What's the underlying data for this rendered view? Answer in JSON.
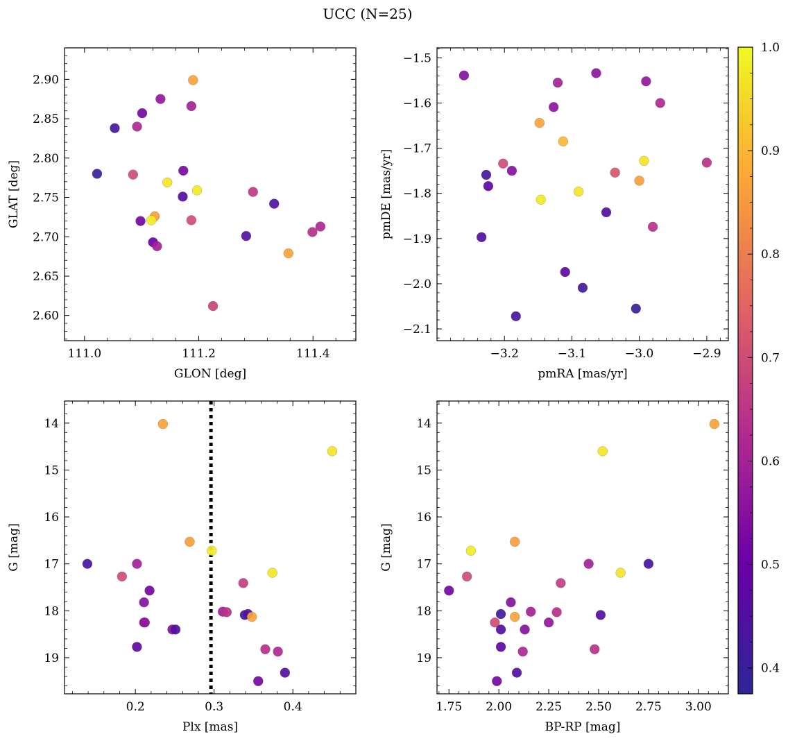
{
  "figure": {
    "title": "UCC (N=25)"
  },
  "colorbar": {
    "min": 0.375,
    "max": 1.0,
    "ticks": [
      0.4,
      0.5,
      0.6,
      0.7,
      0.8,
      0.9,
      1.0
    ],
    "tick_labels": [
      "0.4",
      "0.5",
      "0.6",
      "0.7",
      "0.8",
      "0.9",
      "1.0"
    ],
    "colormap": "plasma",
    "colormap_stops": [
      "#2d2697",
      "#6a00a8",
      "#b12a90",
      "#e16462",
      "#fca636",
      "#f0f921"
    ]
  },
  "chart_data": [
    {
      "type": "scatter",
      "xlabel": "GLON [deg]",
      "ylabel": "GLAT [deg]",
      "xlim": [
        110.965,
        111.475
      ],
      "ylim": [
        2.568,
        2.94
      ],
      "y_inverted": false,
      "xticks": [
        111.0,
        111.2,
        111.4
      ],
      "xtick_labels": [
        "111.0",
        "111.2",
        "111.4"
      ],
      "yticks": [
        2.6,
        2.65,
        2.7,
        2.75,
        2.8,
        2.85,
        2.9
      ],
      "ytick_labels": [
        "2.60",
        "2.65",
        "2.70",
        "2.75",
        "2.80",
        "2.85",
        "2.90"
      ],
      "points": [
        {
          "x": 111.19,
          "y": 2.899,
          "c": 0.87
        },
        {
          "x": 111.133,
          "y": 2.875,
          "c": 0.57
        },
        {
          "x": 111.187,
          "y": 2.866,
          "c": 0.6
        },
        {
          "x": 111.101,
          "y": 2.857,
          "c": 0.52
        },
        {
          "x": 111.053,
          "y": 2.838,
          "c": 0.42
        },
        {
          "x": 111.092,
          "y": 2.84,
          "c": 0.62
        },
        {
          "x": 111.173,
          "y": 2.784,
          "c": 0.53
        },
        {
          "x": 111.022,
          "y": 2.78,
          "c": 0.4
        },
        {
          "x": 111.085,
          "y": 2.779,
          "c": 0.7
        },
        {
          "x": 111.145,
          "y": 2.769,
          "c": 0.97
        },
        {
          "x": 111.197,
          "y": 2.759,
          "c": 0.98
        },
        {
          "x": 111.295,
          "y": 2.757,
          "c": 0.66
        },
        {
          "x": 111.172,
          "y": 2.751,
          "c": 0.45
        },
        {
          "x": 111.332,
          "y": 2.742,
          "c": 0.45
        },
        {
          "x": 111.123,
          "y": 2.726,
          "c": 0.86
        },
        {
          "x": 111.187,
          "y": 2.721,
          "c": 0.7
        },
        {
          "x": 111.098,
          "y": 2.72,
          "c": 0.52
        },
        {
          "x": 111.117,
          "y": 2.721,
          "c": 0.98
        },
        {
          "x": 111.413,
          "y": 2.713,
          "c": 0.62
        },
        {
          "x": 111.399,
          "y": 2.706,
          "c": 0.64
        },
        {
          "x": 111.283,
          "y": 2.701,
          "c": 0.45
        },
        {
          "x": 111.12,
          "y": 2.693,
          "c": 0.5
        },
        {
          "x": 111.127,
          "y": 2.688,
          "c": 0.6
        },
        {
          "x": 111.357,
          "y": 2.679,
          "c": 0.87
        },
        {
          "x": 111.225,
          "y": 2.612,
          "c": 0.68
        }
      ],
      "vline": null
    },
    {
      "type": "scatter",
      "xlabel": "pmRA [mas/yr]",
      "ylabel": "pmDE [mas/yr]",
      "xlim": [
        -3.3,
        -2.868
      ],
      "ylim": [
        -2.126,
        -1.478
      ],
      "y_inverted": false,
      "xticks": [
        -3.2,
        -3.1,
        -3.0,
        -2.9
      ],
      "xtick_labels": [
        "−3.2",
        "−3.1",
        "−3.0",
        "−2.9"
      ],
      "yticks": [
        -2.1,
        -2.0,
        -1.9,
        -1.8,
        -1.7,
        -1.6,
        -1.5
      ],
      "ytick_labels": [
        "−2.1",
        "−2.0",
        "−1.9",
        "−1.8",
        "−1.7",
        "−1.6",
        "−1.5"
      ],
      "points": [
        {
          "x": -3.26,
          "y": -1.539,
          "c": 0.55
        },
        {
          "x": -3.064,
          "y": -1.534,
          "c": 0.56
        },
        {
          "x": -3.121,
          "y": -1.555,
          "c": 0.6
        },
        {
          "x": -2.99,
          "y": -1.552,
          "c": 0.57
        },
        {
          "x": -2.969,
          "y": -1.6,
          "c": 0.62
        },
        {
          "x": -3.127,
          "y": -1.609,
          "c": 0.56
        },
        {
          "x": -3.148,
          "y": -1.644,
          "c": 0.87
        },
        {
          "x": -3.113,
          "y": -1.685,
          "c": 0.9
        },
        {
          "x": -2.993,
          "y": -1.728,
          "c": 0.97
        },
        {
          "x": -2.9,
          "y": -1.732,
          "c": 0.64
        },
        {
          "x": -3.202,
          "y": -1.734,
          "c": 0.7
        },
        {
          "x": -3.189,
          "y": -1.75,
          "c": 0.55
        },
        {
          "x": -3.036,
          "y": -1.754,
          "c": 0.72
        },
        {
          "x": -3.227,
          "y": -1.759,
          "c": 0.42
        },
        {
          "x": -3.0,
          "y": -1.772,
          "c": 0.86
        },
        {
          "x": -3.224,
          "y": -1.784,
          "c": 0.48
        },
        {
          "x": -3.09,
          "y": -1.796,
          "c": 0.97
        },
        {
          "x": -3.146,
          "y": -1.814,
          "c": 0.98
        },
        {
          "x": -3.049,
          "y": -1.842,
          "c": 0.45
        },
        {
          "x": -2.98,
          "y": -1.874,
          "c": 0.64
        },
        {
          "x": -3.234,
          "y": -1.897,
          "c": 0.45
        },
        {
          "x": -3.11,
          "y": -1.974,
          "c": 0.48
        },
        {
          "x": -3.084,
          "y": -2.009,
          "c": 0.42
        },
        {
          "x": -3.005,
          "y": -2.055,
          "c": 0.4
        },
        {
          "x": -3.183,
          "y": -2.072,
          "c": 0.43
        }
      ],
      "vline": null
    },
    {
      "type": "scatter",
      "xlabel": "Plx [mas]",
      "ylabel": "G [mag]",
      "xlim": [
        0.11,
        0.48
      ],
      "ylim": [
        13.53,
        19.77
      ],
      "y_inverted": true,
      "xticks": [
        0.2,
        0.3,
        0.4
      ],
      "xtick_labels": [
        "0.2",
        "0.3",
        "0.4"
      ],
      "yticks": [
        14,
        15,
        16,
        17,
        18,
        19
      ],
      "ytick_labels": [
        "14",
        "15",
        "16",
        "17",
        "18",
        "19"
      ],
      "points": [
        {
          "x": 0.235,
          "y": 14.02,
          "c": 0.87
        },
        {
          "x": 0.45,
          "y": 14.6,
          "c": 0.97
        },
        {
          "x": 0.269,
          "y": 16.53,
          "c": 0.86
        },
        {
          "x": 0.297,
          "y": 16.72,
          "c": 0.98
        },
        {
          "x": 0.139,
          "y": 17.0,
          "c": 0.43
        },
        {
          "x": 0.202,
          "y": 17.0,
          "c": 0.6
        },
        {
          "x": 0.374,
          "y": 17.19,
          "c": 0.97
        },
        {
          "x": 0.183,
          "y": 17.27,
          "c": 0.7
        },
        {
          "x": 0.337,
          "y": 17.41,
          "c": 0.67
        },
        {
          "x": 0.218,
          "y": 17.57,
          "c": 0.52
        },
        {
          "x": 0.211,
          "y": 17.82,
          "c": 0.55
        },
        {
          "x": 0.311,
          "y": 18.02,
          "c": 0.6
        },
        {
          "x": 0.316,
          "y": 18.03,
          "c": 0.64
        },
        {
          "x": 0.339,
          "y": 18.09,
          "c": 0.42
        },
        {
          "x": 0.343,
          "y": 18.07,
          "c": 0.45
        },
        {
          "x": 0.348,
          "y": 18.13,
          "c": 0.87
        },
        {
          "x": 0.211,
          "y": 18.25,
          "c": 0.6
        },
        {
          "x": 0.212,
          "y": 18.25,
          "c": 0.57
        },
        {
          "x": 0.247,
          "y": 18.4,
          "c": 0.55
        },
        {
          "x": 0.251,
          "y": 18.4,
          "c": 0.45
        },
        {
          "x": 0.202,
          "y": 18.77,
          "c": 0.48
        },
        {
          "x": 0.365,
          "y": 18.82,
          "c": 0.64
        },
        {
          "x": 0.381,
          "y": 18.87,
          "c": 0.62
        },
        {
          "x": 0.39,
          "y": 19.32,
          "c": 0.45
        },
        {
          "x": 0.356,
          "y": 19.5,
          "c": 0.52
        }
      ],
      "vline": {
        "x": 0.296,
        "style": "dotted"
      }
    },
    {
      "type": "scatter",
      "xlabel": "BP-RP [mag]",
      "ylabel": "G [mag]",
      "xlim": [
        1.69,
        3.15
      ],
      "ylim": [
        13.53,
        19.77
      ],
      "y_inverted": true,
      "xticks": [
        1.75,
        2.0,
        2.25,
        2.5,
        2.75,
        3.0
      ],
      "xtick_labels": [
        "1.75",
        "2.00",
        "2.25",
        "2.50",
        "2.75",
        "3.00"
      ],
      "yticks": [
        14,
        15,
        16,
        17,
        18,
        19
      ],
      "ytick_labels": [
        "14",
        "15",
        "16",
        "17",
        "18",
        "19"
      ],
      "points": [
        {
          "x": 3.08,
          "y": 14.02,
          "c": 0.87
        },
        {
          "x": 2.52,
          "y": 14.6,
          "c": 0.97
        },
        {
          "x": 2.08,
          "y": 16.53,
          "c": 0.86
        },
        {
          "x": 1.86,
          "y": 16.72,
          "c": 0.98
        },
        {
          "x": 2.45,
          "y": 17.0,
          "c": 0.6
        },
        {
          "x": 2.75,
          "y": 17.0,
          "c": 0.43
        },
        {
          "x": 2.61,
          "y": 17.19,
          "c": 0.97
        },
        {
          "x": 1.84,
          "y": 17.27,
          "c": 0.7
        },
        {
          "x": 2.31,
          "y": 17.41,
          "c": 0.67
        },
        {
          "x": 1.75,
          "y": 17.57,
          "c": 0.52
        },
        {
          "x": 2.06,
          "y": 17.82,
          "c": 0.55
        },
        {
          "x": 2.16,
          "y": 18.02,
          "c": 0.6
        },
        {
          "x": 2.29,
          "y": 18.03,
          "c": 0.64
        },
        {
          "x": 2.01,
          "y": 18.07,
          "c": 0.42
        },
        {
          "x": 2.51,
          "y": 18.09,
          "c": 0.45
        },
        {
          "x": 2.08,
          "y": 18.13,
          "c": 0.87
        },
        {
          "x": 1.98,
          "y": 18.25,
          "c": 0.7
        },
        {
          "x": 2.25,
          "y": 18.25,
          "c": 0.57
        },
        {
          "x": 2.01,
          "y": 18.4,
          "c": 0.45
        },
        {
          "x": 2.13,
          "y": 18.4,
          "c": 0.55
        },
        {
          "x": 2.01,
          "y": 18.77,
          "c": 0.48
        },
        {
          "x": 2.48,
          "y": 18.82,
          "c": 0.64
        },
        {
          "x": 2.12,
          "y": 18.87,
          "c": 0.62
        },
        {
          "x": 2.09,
          "y": 19.32,
          "c": 0.45
        },
        {
          "x": 1.99,
          "y": 19.5,
          "c": 0.52
        }
      ],
      "vline": null
    }
  ]
}
